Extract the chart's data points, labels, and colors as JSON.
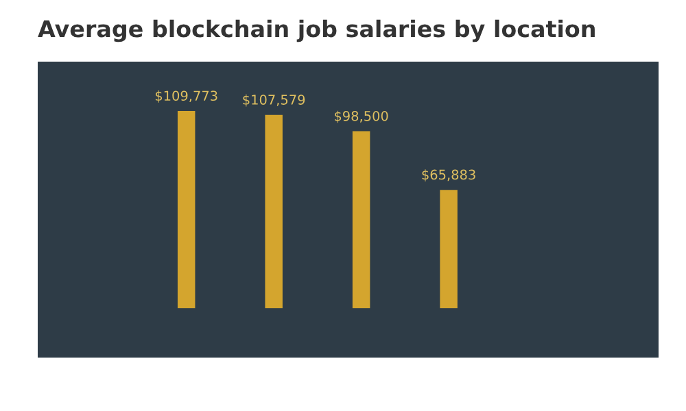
{
  "chart_data": {
    "type": "bar",
    "title": "Average blockchain job salaries by location",
    "categories": [
      null,
      null,
      null,
      null
    ],
    "values": [
      109773,
      107579,
      98500,
      65883
    ],
    "value_labels": [
      "$109,773",
      "$107,579",
      "$98,500",
      "$65,883"
    ],
    "color": "#d4a52e"
  }
}
